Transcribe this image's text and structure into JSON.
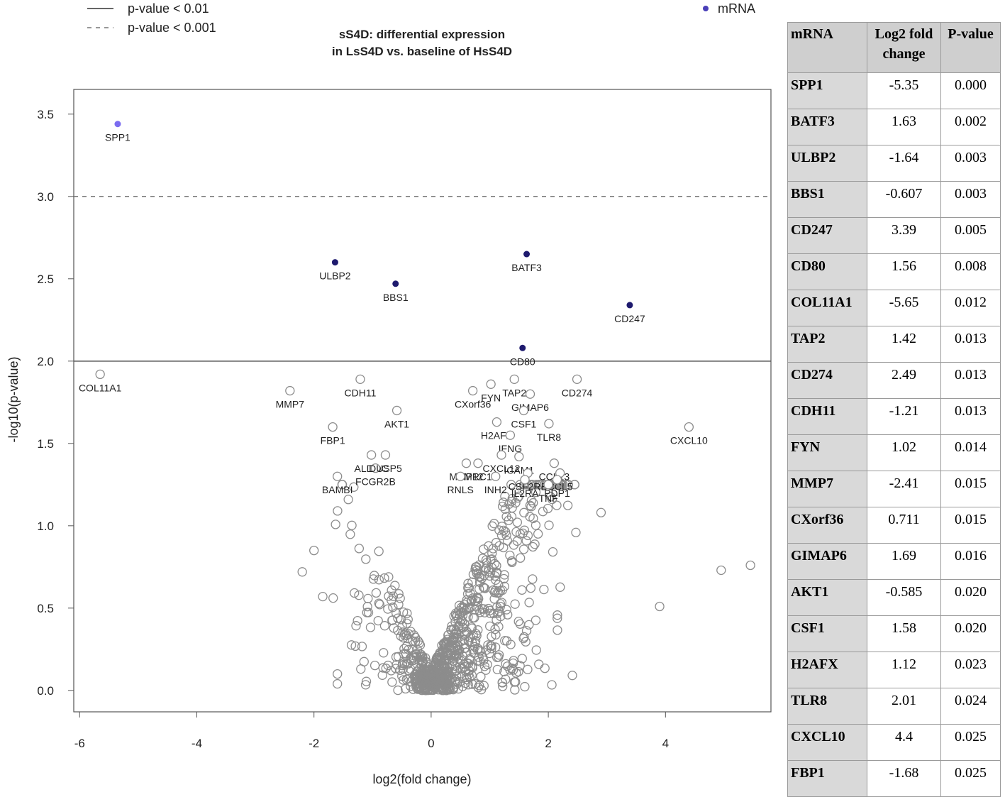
{
  "chart_data": {
    "type": "scatter",
    "title": [
      "sS4D: differential expression",
      "in LsS4D vs. baseline of HsS4D"
    ],
    "xlabel": "log2(fold change)",
    "ylabel": "-log10(p-value)",
    "xlim": [
      -6.1,
      5.8
    ],
    "ylim": [
      -0.13,
      3.65
    ],
    "x_ticks": [
      -6,
      -4,
      -2,
      0,
      2,
      4
    ],
    "y_ticks": [
      0.0,
      0.5,
      1.0,
      1.5,
      2.0,
      2.5,
      3.0,
      3.5
    ],
    "x_tick_labels": [
      "-6",
      "-4",
      "-2",
      "0",
      "2",
      "4"
    ],
    "y_tick_labels": [
      "0.0",
      "0.5",
      "1.0",
      "1.5",
      "2.0",
      "2.5",
      "3.0",
      "3.5"
    ],
    "thresholds": [
      {
        "y": 2.0,
        "style": "solid",
        "label": "p-value < 0.01"
      },
      {
        "y": 3.0,
        "style": "dashed",
        "label": "p-value < 0.001"
      }
    ],
    "legend": {
      "lines": [
        "p-value < 0.01",
        "p-value < 0.001"
      ],
      "point_label": "mRNA",
      "position": "top"
    },
    "significant_points": [
      {
        "gene": "SPP1",
        "x": -5.35,
        "y": 3.44,
        "color": "#7b6cf0"
      },
      {
        "gene": "ULBP2",
        "x": -1.64,
        "y": 2.6,
        "color": "#1e1a6e"
      },
      {
        "gene": "BBS1",
        "x": -0.607,
        "y": 2.47,
        "color": "#1e1a6e"
      },
      {
        "gene": "BATF3",
        "x": 1.63,
        "y": 2.65,
        "color": "#1e1a6e"
      },
      {
        "gene": "CD247",
        "x": 3.39,
        "y": 2.34,
        "color": "#1e1a6e"
      },
      {
        "gene": "CD80",
        "x": 1.56,
        "y": 2.08,
        "color": "#1e1a6e"
      }
    ],
    "labeled_points": [
      {
        "gene": "COL11A1",
        "x": -5.65,
        "y": 1.92
      },
      {
        "gene": "MMP7",
        "x": -2.41,
        "y": 1.82
      },
      {
        "gene": "CDH11",
        "x": -1.21,
        "y": 1.89
      },
      {
        "gene": "FBP1",
        "x": -1.68,
        "y": 1.6
      },
      {
        "gene": "AKT1",
        "x": -0.585,
        "y": 1.7
      },
      {
        "gene": "ALDOC",
        "x": -1.02,
        "y": 1.43
      },
      {
        "gene": "FCGR2B",
        "x": -0.95,
        "y": 1.35
      },
      {
        "gene": "DUSP5",
        "x": -0.78,
        "y": 1.43
      },
      {
        "gene": "BAMBI",
        "x": -1.6,
        "y": 1.3
      },
      {
        "gene": "CXorf36",
        "x": 0.711,
        "y": 1.82
      },
      {
        "gene": "FYN",
        "x": 1.02,
        "y": 1.86
      },
      {
        "gene": "TAP2",
        "x": 1.42,
        "y": 1.89
      },
      {
        "gene": "CD274",
        "x": 2.49,
        "y": 1.89
      },
      {
        "gene": "GIMAP6",
        "x": 1.69,
        "y": 1.8
      },
      {
        "gene": "CSF1",
        "x": 1.58,
        "y": 1.7
      },
      {
        "gene": "H2AFX",
        "x": 1.12,
        "y": 1.63
      },
      {
        "gene": "TLR8",
        "x": 2.01,
        "y": 1.62
      },
      {
        "gene": "IFNG",
        "x": 1.35,
        "y": 1.55
      },
      {
        "gene": "CXCL10",
        "x": 4.4,
        "y": 1.6
      },
      {
        "gene": "CXCL12",
        "x": 1.2,
        "y": 1.43
      },
      {
        "gene": "ICAM1",
        "x": 1.5,
        "y": 1.42
      },
      {
        "gene": "MRC1",
        "x": 0.8,
        "y": 1.38
      },
      {
        "gene": "MMP12",
        "x": 0.6,
        "y": 1.38
      },
      {
        "gene": "CCL13",
        "x": 2.1,
        "y": 1.38
      },
      {
        "gene": "CSF2RB",
        "x": 1.65,
        "y": 1.32
      },
      {
        "gene": "CCL5",
        "x": 2.2,
        "y": 1.32
      },
      {
        "gene": "INH2",
        "x": 1.1,
        "y": 1.3
      },
      {
        "gene": "IL2RA",
        "x": 1.6,
        "y": 1.28
      },
      {
        "gene": "PDP1",
        "x": 2.15,
        "y": 1.28
      },
      {
        "gene": "TNF",
        "x": 2.0,
        "y": 1.25
      },
      {
        "gene": "RNLS",
        "x": 0.5,
        "y": 1.3
      }
    ]
  },
  "table": {
    "headers": [
      "mRNA",
      "Log2 fold change",
      "P-value"
    ],
    "rows": [
      {
        "gene": "SPP1",
        "log2fc": "-5.35",
        "pvalue": "0.000"
      },
      {
        "gene": "BATF3",
        "log2fc": "1.63",
        "pvalue": "0.002"
      },
      {
        "gene": "ULBP2",
        "log2fc": "-1.64",
        "pvalue": "0.003"
      },
      {
        "gene": "BBS1",
        "log2fc": "-0.607",
        "pvalue": "0.003"
      },
      {
        "gene": "CD247",
        "log2fc": "3.39",
        "pvalue": "0.005"
      },
      {
        "gene": "CD80",
        "log2fc": "1.56",
        "pvalue": "0.008"
      },
      {
        "gene": "COL11A1",
        "log2fc": "-5.65",
        "pvalue": "0.012"
      },
      {
        "gene": "TAP2",
        "log2fc": "1.42",
        "pvalue": "0.013"
      },
      {
        "gene": "CD274",
        "log2fc": "2.49",
        "pvalue": "0.013"
      },
      {
        "gene": "CDH11",
        "log2fc": "-1.21",
        "pvalue": "0.013"
      },
      {
        "gene": "FYN",
        "log2fc": "1.02",
        "pvalue": "0.014"
      },
      {
        "gene": "MMP7",
        "log2fc": "-2.41",
        "pvalue": "0.015"
      },
      {
        "gene": "CXorf36",
        "log2fc": "0.711",
        "pvalue": "0.015"
      },
      {
        "gene": "GIMAP6",
        "log2fc": "1.69",
        "pvalue": "0.016"
      },
      {
        "gene": "AKT1",
        "log2fc": "-0.585",
        "pvalue": "0.020"
      },
      {
        "gene": "CSF1",
        "log2fc": "1.58",
        "pvalue": "0.020"
      },
      {
        "gene": "H2AFX",
        "log2fc": "1.12",
        "pvalue": "0.023"
      },
      {
        "gene": "TLR8",
        "log2fc": "2.01",
        "pvalue": "0.024"
      },
      {
        "gene": "CXCL10",
        "log2fc": "4.4",
        "pvalue": "0.025"
      },
      {
        "gene": "FBP1",
        "log2fc": "-1.68",
        "pvalue": "0.025"
      }
    ]
  },
  "colors": {
    "background_point": "#8c8c8c",
    "threshold_line": "#555555",
    "frame": "#555555",
    "table_header": "#cfcfcf",
    "table_gene_cell": "#d9d9d9"
  }
}
